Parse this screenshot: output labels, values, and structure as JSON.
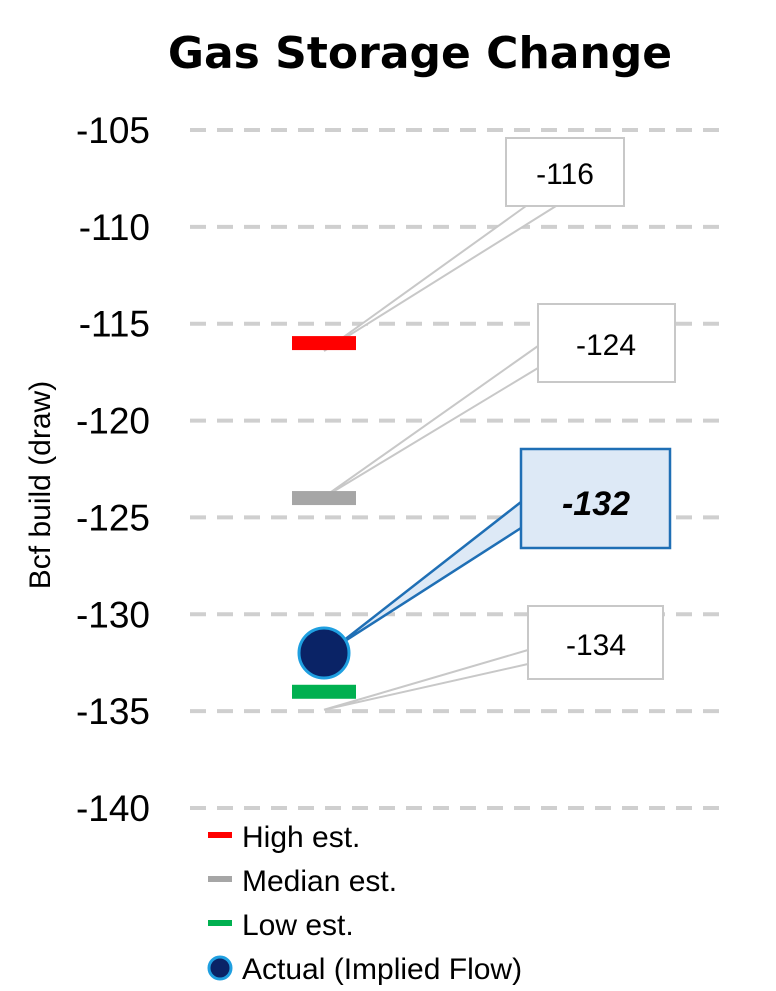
{
  "chart_data": {
    "type": "scatter",
    "title": "Gas Storage Change",
    "ylabel": "Bcf build (draw)",
    "ylim": [
      -140,
      -105
    ],
    "yticks": [
      -105,
      -110,
      -115,
      -120,
      -125,
      -130,
      -135,
      -140
    ],
    "grid": true,
    "legend_position": "bottom-left",
    "series": [
      {
        "name": "High est.",
        "value": -116,
        "marker": "dash",
        "color": "#ff0000"
      },
      {
        "name": "Median est.",
        "value": -124,
        "marker": "dash",
        "color": "#a6a6a6"
      },
      {
        "name": "Low est.",
        "value": -134,
        "marker": "dash",
        "color": "#00b050"
      },
      {
        "name": "Actual (Implied Flow)",
        "value": -132,
        "marker": "circle",
        "color": "#0a2366",
        "edge_color": "#1f9fe0"
      }
    ],
    "callouts": [
      {
        "label": "-116",
        "series": "High est."
      },
      {
        "label": "-124",
        "series": "Median est."
      },
      {
        "label": "-132",
        "series": "Actual (Implied Flow)",
        "highlight": true
      },
      {
        "label": "-134",
        "series": "Low est."
      }
    ]
  }
}
